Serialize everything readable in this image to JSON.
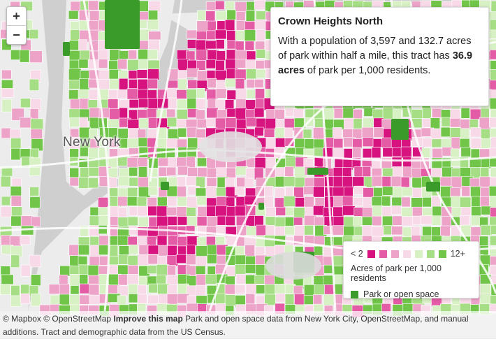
{
  "zoom": {
    "in_label": "+",
    "out_label": "−"
  },
  "city_label": "New York",
  "tooltip": {
    "title": "Crown Heights North",
    "line_prefix": "With a population of 3,597 and 132.7 acres of park within half a mile, this tract has ",
    "highlight": "36.9 acres",
    "line_suffix": " of park per 1,000 residents."
  },
  "legend": {
    "min_label": "< 2",
    "max_label": "12+",
    "colors": [
      "#d6137f",
      "#e45ca6",
      "#eda3c8",
      "#f8d9e8",
      "#d7f0c4",
      "#a6de85",
      "#71c64a"
    ],
    "caption": "Acres of park per 1,000 residents",
    "park_label": "Park or open space",
    "park_color": "#3a9a2a"
  },
  "attribution": {
    "mapbox": "© Mapbox",
    "osm": "© OpenStreetMap",
    "improve": "Improve this map",
    "text": "Park and open space data from New York City, OpenStreetMap, and manual additions. Tract and demographic data from the US Census."
  },
  "map_colors": {
    "water": "#cfcfcf",
    "land": "#ececec",
    "road": "#ffffff",
    "park": "#3a9a2a"
  }
}
